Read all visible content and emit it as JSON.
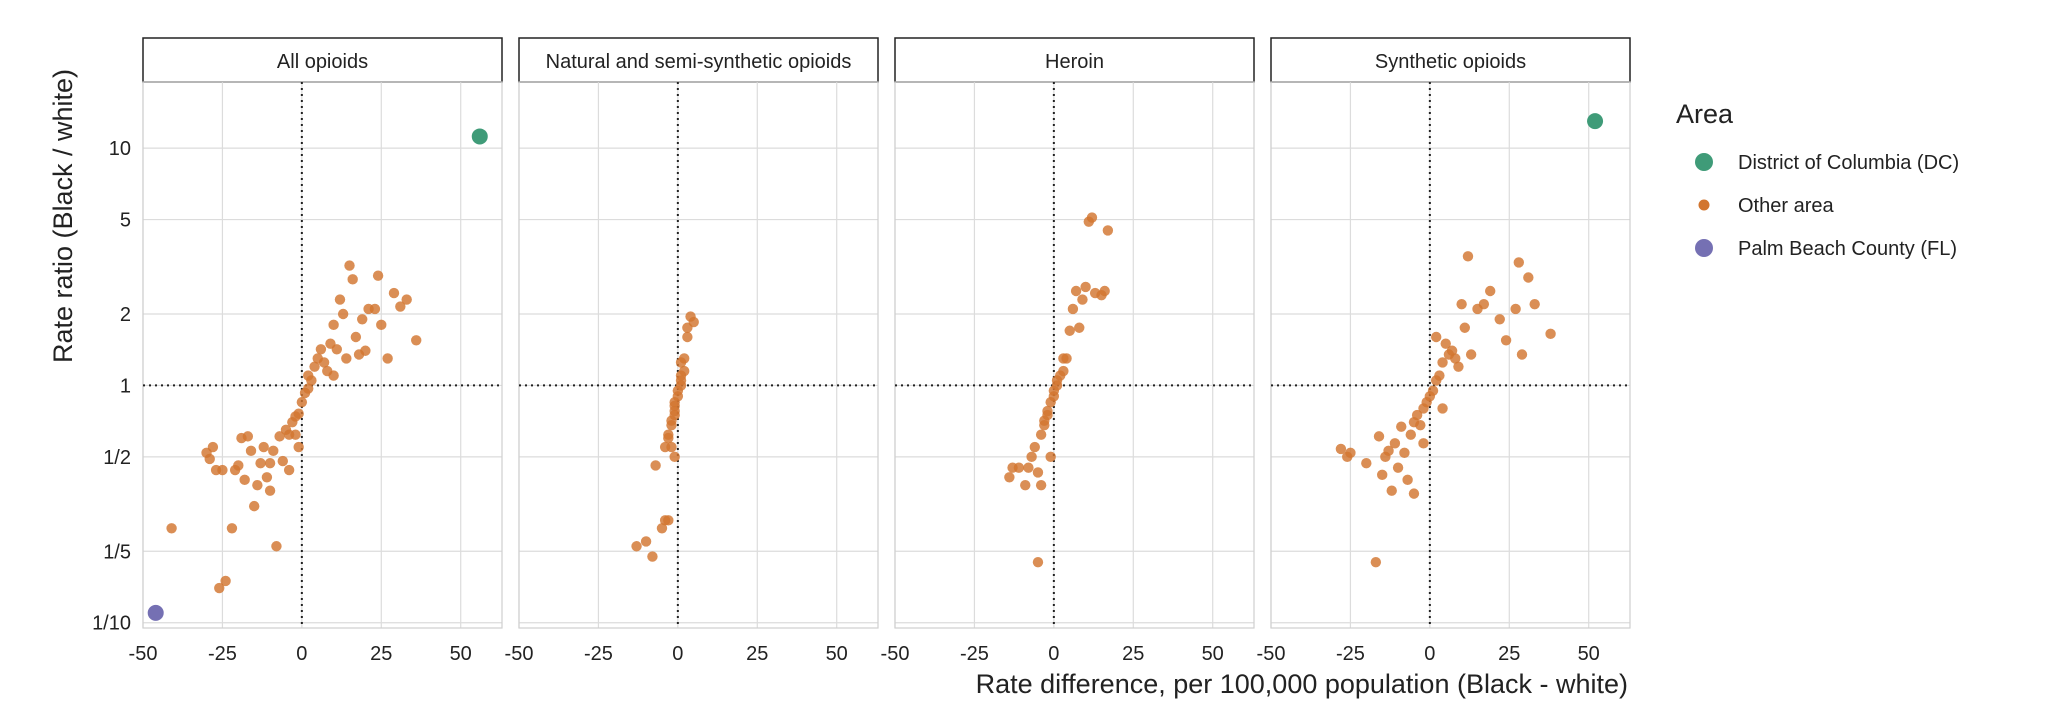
{
  "chart_data": {
    "type": "scatter",
    "facets": [
      "All opioids",
      "Natural and semi-synthetic opioids",
      "Heroin",
      "Synthetic opioids"
    ],
    "xlabel": "Rate difference, per 100,000 population (Black - white)",
    "ylabel": "Rate ratio (Black / white)",
    "xlim": [
      -50,
      63
    ],
    "ylim": [
      0.095,
      19
    ],
    "y_scale": "log",
    "x_ticks": [
      -50,
      -25,
      0,
      25,
      50
    ],
    "x_tick_labels": [
      "-50",
      "-25",
      "0",
      "25",
      "50"
    ],
    "y_ticks": [
      0.1,
      0.2,
      0.5,
      1,
      2,
      5,
      10
    ],
    "y_tick_labels": [
      "1/10",
      "1/5",
      "1/2",
      "1",
      "2",
      "5",
      "10"
    ],
    "reference_lines": {
      "x": 0,
      "y": 1
    },
    "grid": true,
    "legend": {
      "title": "Area",
      "position": "right",
      "entries": [
        {
          "label": "District of Columbia (DC)",
          "color": "#3f9b78"
        },
        {
          "label": "Other area",
          "color": "#d2752f"
        },
        {
          "label": "Palm Beach County (FL)",
          "color": "#7570b3"
        }
      ]
    },
    "panels": [
      {
        "facet": "All opioids",
        "dc": [
          [
            56,
            11.2
          ]
        ],
        "palm_beach": [
          [
            -46,
            0.11
          ]
        ],
        "points": [
          [
            -41,
            0.25
          ],
          [
            -30,
            0.52
          ],
          [
            -28,
            0.55
          ],
          [
            -29,
            0.49
          ],
          [
            -27,
            0.44
          ],
          [
            -25,
            0.44
          ],
          [
            -26,
            0.14
          ],
          [
            -24,
            0.15
          ],
          [
            -22,
            0.25
          ],
          [
            -21,
            0.44
          ],
          [
            -20,
            0.46
          ],
          [
            -19,
            0.6
          ],
          [
            -18,
            0.4
          ],
          [
            -17,
            0.61
          ],
          [
            -16,
            0.53
          ],
          [
            -15,
            0.31
          ],
          [
            -14,
            0.38
          ],
          [
            -13,
            0.47
          ],
          [
            -12,
            0.55
          ],
          [
            -11,
            0.41
          ],
          [
            -10,
            0.36
          ],
          [
            -10,
            0.47
          ],
          [
            -9,
            0.53
          ],
          [
            -8,
            0.21
          ],
          [
            -7,
            0.61
          ],
          [
            -6,
            0.48
          ],
          [
            -5,
            0.65
          ],
          [
            -4,
            0.62
          ],
          [
            -4,
            0.44
          ],
          [
            -3,
            0.7
          ],
          [
            -2,
            0.74
          ],
          [
            -2,
            0.62
          ],
          [
            -1,
            0.76
          ],
          [
            -1,
            0.55
          ],
          [
            0,
            0.85
          ],
          [
            1,
            0.93
          ],
          [
            2,
            0.97
          ],
          [
            3,
            1.05
          ],
          [
            2,
            1.1
          ],
          [
            4,
            1.2
          ],
          [
            5,
            1.3
          ],
          [
            6,
            1.42
          ],
          [
            7,
            1.25
          ],
          [
            8,
            1.15
          ],
          [
            9,
            1.5
          ],
          [
            10,
            1.8
          ],
          [
            11,
            1.42
          ],
          [
            12,
            2.3
          ],
          [
            13,
            2.0
          ],
          [
            14,
            1.3
          ],
          [
            15,
            3.2
          ],
          [
            16,
            2.8
          ],
          [
            17,
            1.6
          ],
          [
            19,
            1.9
          ],
          [
            20,
            1.4
          ],
          [
            21,
            2.1
          ],
          [
            23,
            2.1
          ],
          [
            25,
            1.8
          ],
          [
            27,
            1.3
          ],
          [
            29,
            2.45
          ],
          [
            31,
            2.15
          ],
          [
            33,
            2.3
          ],
          [
            36,
            1.55
          ],
          [
            24,
            2.9
          ],
          [
            18,
            1.35
          ],
          [
            10,
            1.1
          ]
        ]
      },
      {
        "facet": "Natural and semi-synthetic opioids",
        "dc": [],
        "palm_beach": [],
        "points": [
          [
            -13,
            0.21
          ],
          [
            -10,
            0.22
          ],
          [
            -8,
            0.19
          ],
          [
            -7,
            0.46
          ],
          [
            -5,
            0.25
          ],
          [
            -4,
            0.27
          ],
          [
            -4,
            0.55
          ],
          [
            -3,
            0.62
          ],
          [
            -3,
            0.6
          ],
          [
            -2,
            0.68
          ],
          [
            -2,
            0.71
          ],
          [
            -1,
            0.75
          ],
          [
            -1,
            0.78
          ],
          [
            -1,
            0.82
          ],
          [
            -1,
            0.85
          ],
          [
            0,
            0.9
          ],
          [
            0,
            0.95
          ],
          [
            1,
            1.0
          ],
          [
            1,
            1.05
          ],
          [
            1,
            1.1
          ],
          [
            2,
            1.15
          ],
          [
            2,
            1.3
          ],
          [
            3,
            1.6
          ],
          [
            3,
            1.75
          ],
          [
            4,
            1.95
          ],
          [
            5,
            1.85
          ],
          [
            1,
            1.25
          ],
          [
            -2,
            0.55
          ],
          [
            -1,
            0.5
          ],
          [
            -3,
            0.27
          ]
        ]
      },
      {
        "facet": "Heroin",
        "dc": [],
        "palm_beach": [],
        "points": [
          [
            -14,
            0.41
          ],
          [
            -13,
            0.45
          ],
          [
            -11,
            0.45
          ],
          [
            -9,
            0.38
          ],
          [
            -8,
            0.45
          ],
          [
            -7,
            0.5
          ],
          [
            -6,
            0.55
          ],
          [
            -5,
            0.43
          ],
          [
            -5,
            0.18
          ],
          [
            -4,
            0.38
          ],
          [
            -4,
            0.62
          ],
          [
            -3,
            0.68
          ],
          [
            -3,
            0.71
          ],
          [
            -2,
            0.75
          ],
          [
            -2,
            0.78
          ],
          [
            -1,
            0.85
          ],
          [
            -1,
            0.5
          ],
          [
            0,
            0.9
          ],
          [
            0,
            0.95
          ],
          [
            1,
            1.0
          ],
          [
            1,
            1.05
          ],
          [
            2,
            1.1
          ],
          [
            3,
            1.15
          ],
          [
            3,
            1.3
          ],
          [
            4,
            1.3
          ],
          [
            5,
            1.7
          ],
          [
            6,
            2.1
          ],
          [
            7,
            2.5
          ],
          [
            8,
            1.75
          ],
          [
            9,
            2.3
          ],
          [
            10,
            2.6
          ],
          [
            11,
            4.9
          ],
          [
            12,
            5.1
          ],
          [
            13,
            2.45
          ],
          [
            15,
            2.4
          ],
          [
            16,
            2.5
          ],
          [
            17,
            4.5
          ]
        ]
      },
      {
        "facet": "Synthetic opioids",
        "dc": [
          [
            52,
            13
          ]
        ],
        "palm_beach": [],
        "points": [
          [
            -28,
            0.54
          ],
          [
            -26,
            0.5
          ],
          [
            -25,
            0.52
          ],
          [
            -20,
            0.47
          ],
          [
            -17,
            0.18
          ],
          [
            -16,
            0.61
          ],
          [
            -15,
            0.42
          ],
          [
            -14,
            0.5
          ],
          [
            -13,
            0.53
          ],
          [
            -12,
            0.36
          ],
          [
            -11,
            0.57
          ],
          [
            -10,
            0.45
          ],
          [
            -9,
            0.67
          ],
          [
            -8,
            0.52
          ],
          [
            -7,
            0.4
          ],
          [
            -6,
            0.62
          ],
          [
            -5,
            0.7
          ],
          [
            -5,
            0.35
          ],
          [
            -4,
            0.75
          ],
          [
            -3,
            0.68
          ],
          [
            -2,
            0.8
          ],
          [
            -1,
            0.85
          ],
          [
            0,
            0.9
          ],
          [
            1,
            0.95
          ],
          [
            2,
            1.05
          ],
          [
            3,
            1.1
          ],
          [
            4,
            1.25
          ],
          [
            5,
            1.5
          ],
          [
            6,
            1.35
          ],
          [
            7,
            1.4
          ],
          [
            8,
            1.3
          ],
          [
            9,
            1.2
          ],
          [
            10,
            2.2
          ],
          [
            11,
            1.75
          ],
          [
            12,
            3.5
          ],
          [
            13,
            1.35
          ],
          [
            15,
            2.1
          ],
          [
            17,
            2.2
          ],
          [
            19,
            2.5
          ],
          [
            22,
            1.9
          ],
          [
            24,
            1.55
          ],
          [
            27,
            2.1
          ],
          [
            28,
            3.3
          ],
          [
            29,
            1.35
          ],
          [
            31,
            2.85
          ],
          [
            33,
            2.2
          ],
          [
            38,
            1.65
          ],
          [
            2,
            1.6
          ],
          [
            4,
            0.8
          ],
          [
            -2,
            0.57
          ]
        ]
      }
    ]
  }
}
